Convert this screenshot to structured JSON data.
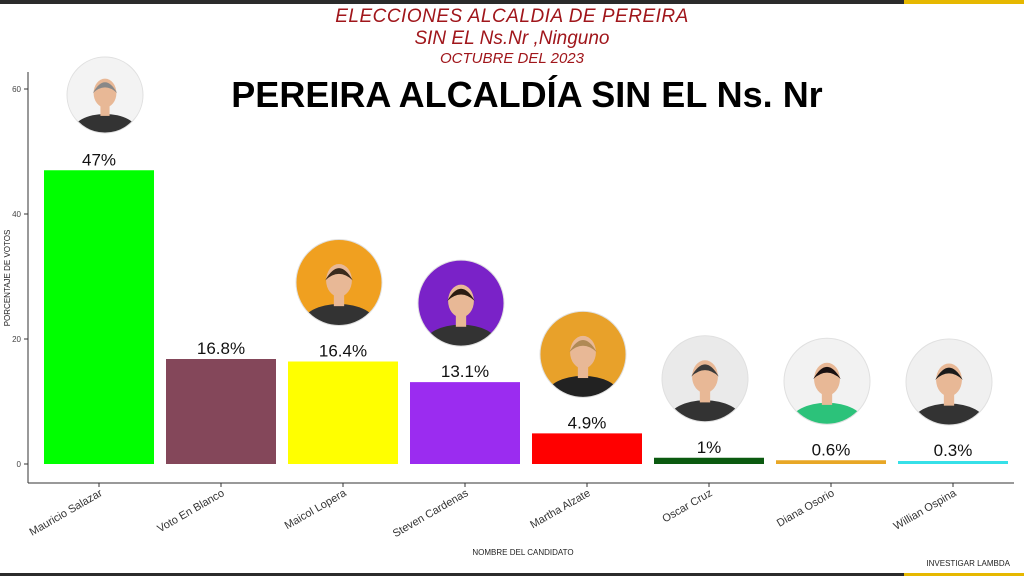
{
  "header": {
    "line1": "ELECCIONES  ALCALDIA DE PEREIRA",
    "line2": "SIN EL Ns.Nr ,Ninguno",
    "line3": "OCTUBRE DEL 2023"
  },
  "footer": {
    "credit": "INVESTIGAR LAMBDA"
  },
  "colors": {
    "header_text": "#a0161b",
    "frame_accent": "#e6b800"
  },
  "chart_data": {
    "type": "bar",
    "title": "PEREIRA ALCALDÍA SIN EL Ns. Nr",
    "xlabel": "NOMBRE DEL CANDIDATO",
    "ylabel": "PORCENTAJE DE VOTOS",
    "ylim": [
      0,
      62
    ],
    "yticks": [
      0,
      20,
      40,
      60
    ],
    "grid": false,
    "categories": [
      "Mauricio Salazar",
      "Voto En Blanco",
      "Maicol Lopera",
      "Steven Cardenas",
      "Martha Alzate",
      "Oscar Cruz",
      "Diana Osorio",
      "Willian Ospina"
    ],
    "values": [
      47,
      16.8,
      16.4,
      13.1,
      4.9,
      1,
      0.6,
      0.3
    ],
    "value_labels": [
      "47%",
      "16.8%",
      "16.4%",
      "13.1%",
      "4.9%",
      "1%",
      "0.6%",
      "0.3%"
    ],
    "colors": [
      "#00ff00",
      "#84475a",
      "#ffff00",
      "#9b2cf0",
      "#ff0000",
      "#0b5a10",
      "#e8a726",
      "#36e0e8"
    ],
    "photos": [
      "candidate-photo",
      "",
      "candidate-photo",
      "candidate-photo",
      "candidate-photo",
      "candidate-photo",
      "candidate-photo",
      "candidate-photo"
    ]
  }
}
